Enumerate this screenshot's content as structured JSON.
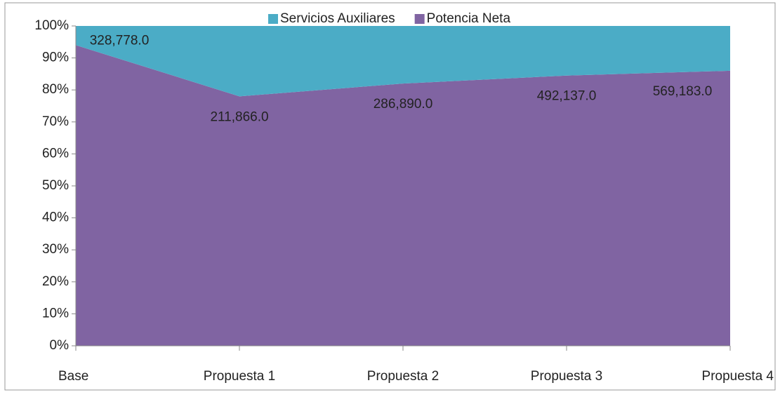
{
  "chart_data": {
    "type": "area",
    "stacking": "percent",
    "categories": [
      "Base",
      "Propuesta 1",
      "Propuesta  2",
      "Propuesta 3",
      "Propuesta 4"
    ],
    "series": [
      {
        "name": "Potencia Neta",
        "color": "#8064a2",
        "values": [
          328778,
          211866,
          286890,
          492137,
          569183
        ],
        "value_labels": [
          "328,778.0",
          "211,866.0",
          "286,890.0",
          "492,137.0",
          "569,183.0"
        ]
      },
      {
        "name": "Servicios Auxiliares",
        "color": "#4bacc6",
        "values": [
          21000,
          59800,
          63000,
          90300,
          92700
        ]
      }
    ],
    "legend_order": [
      1,
      0
    ],
    "ylim": [
      0,
      100
    ],
    "yticks": [
      {
        "value": 0,
        "label": "0%"
      },
      {
        "value": 10,
        "label": "10%"
      },
      {
        "value": 20,
        "label": "20%"
      },
      {
        "value": 30,
        "label": "30%"
      },
      {
        "value": 40,
        "label": "40%"
      },
      {
        "value": 50,
        "label": "50%"
      },
      {
        "value": 60,
        "label": "60%"
      },
      {
        "value": 70,
        "label": "70%"
      },
      {
        "value": 80,
        "label": "80%"
      },
      {
        "value": 90,
        "label": "90%"
      },
      {
        "value": 100,
        "label": "100%"
      }
    ],
    "legend": "top",
    "grid": false
  }
}
